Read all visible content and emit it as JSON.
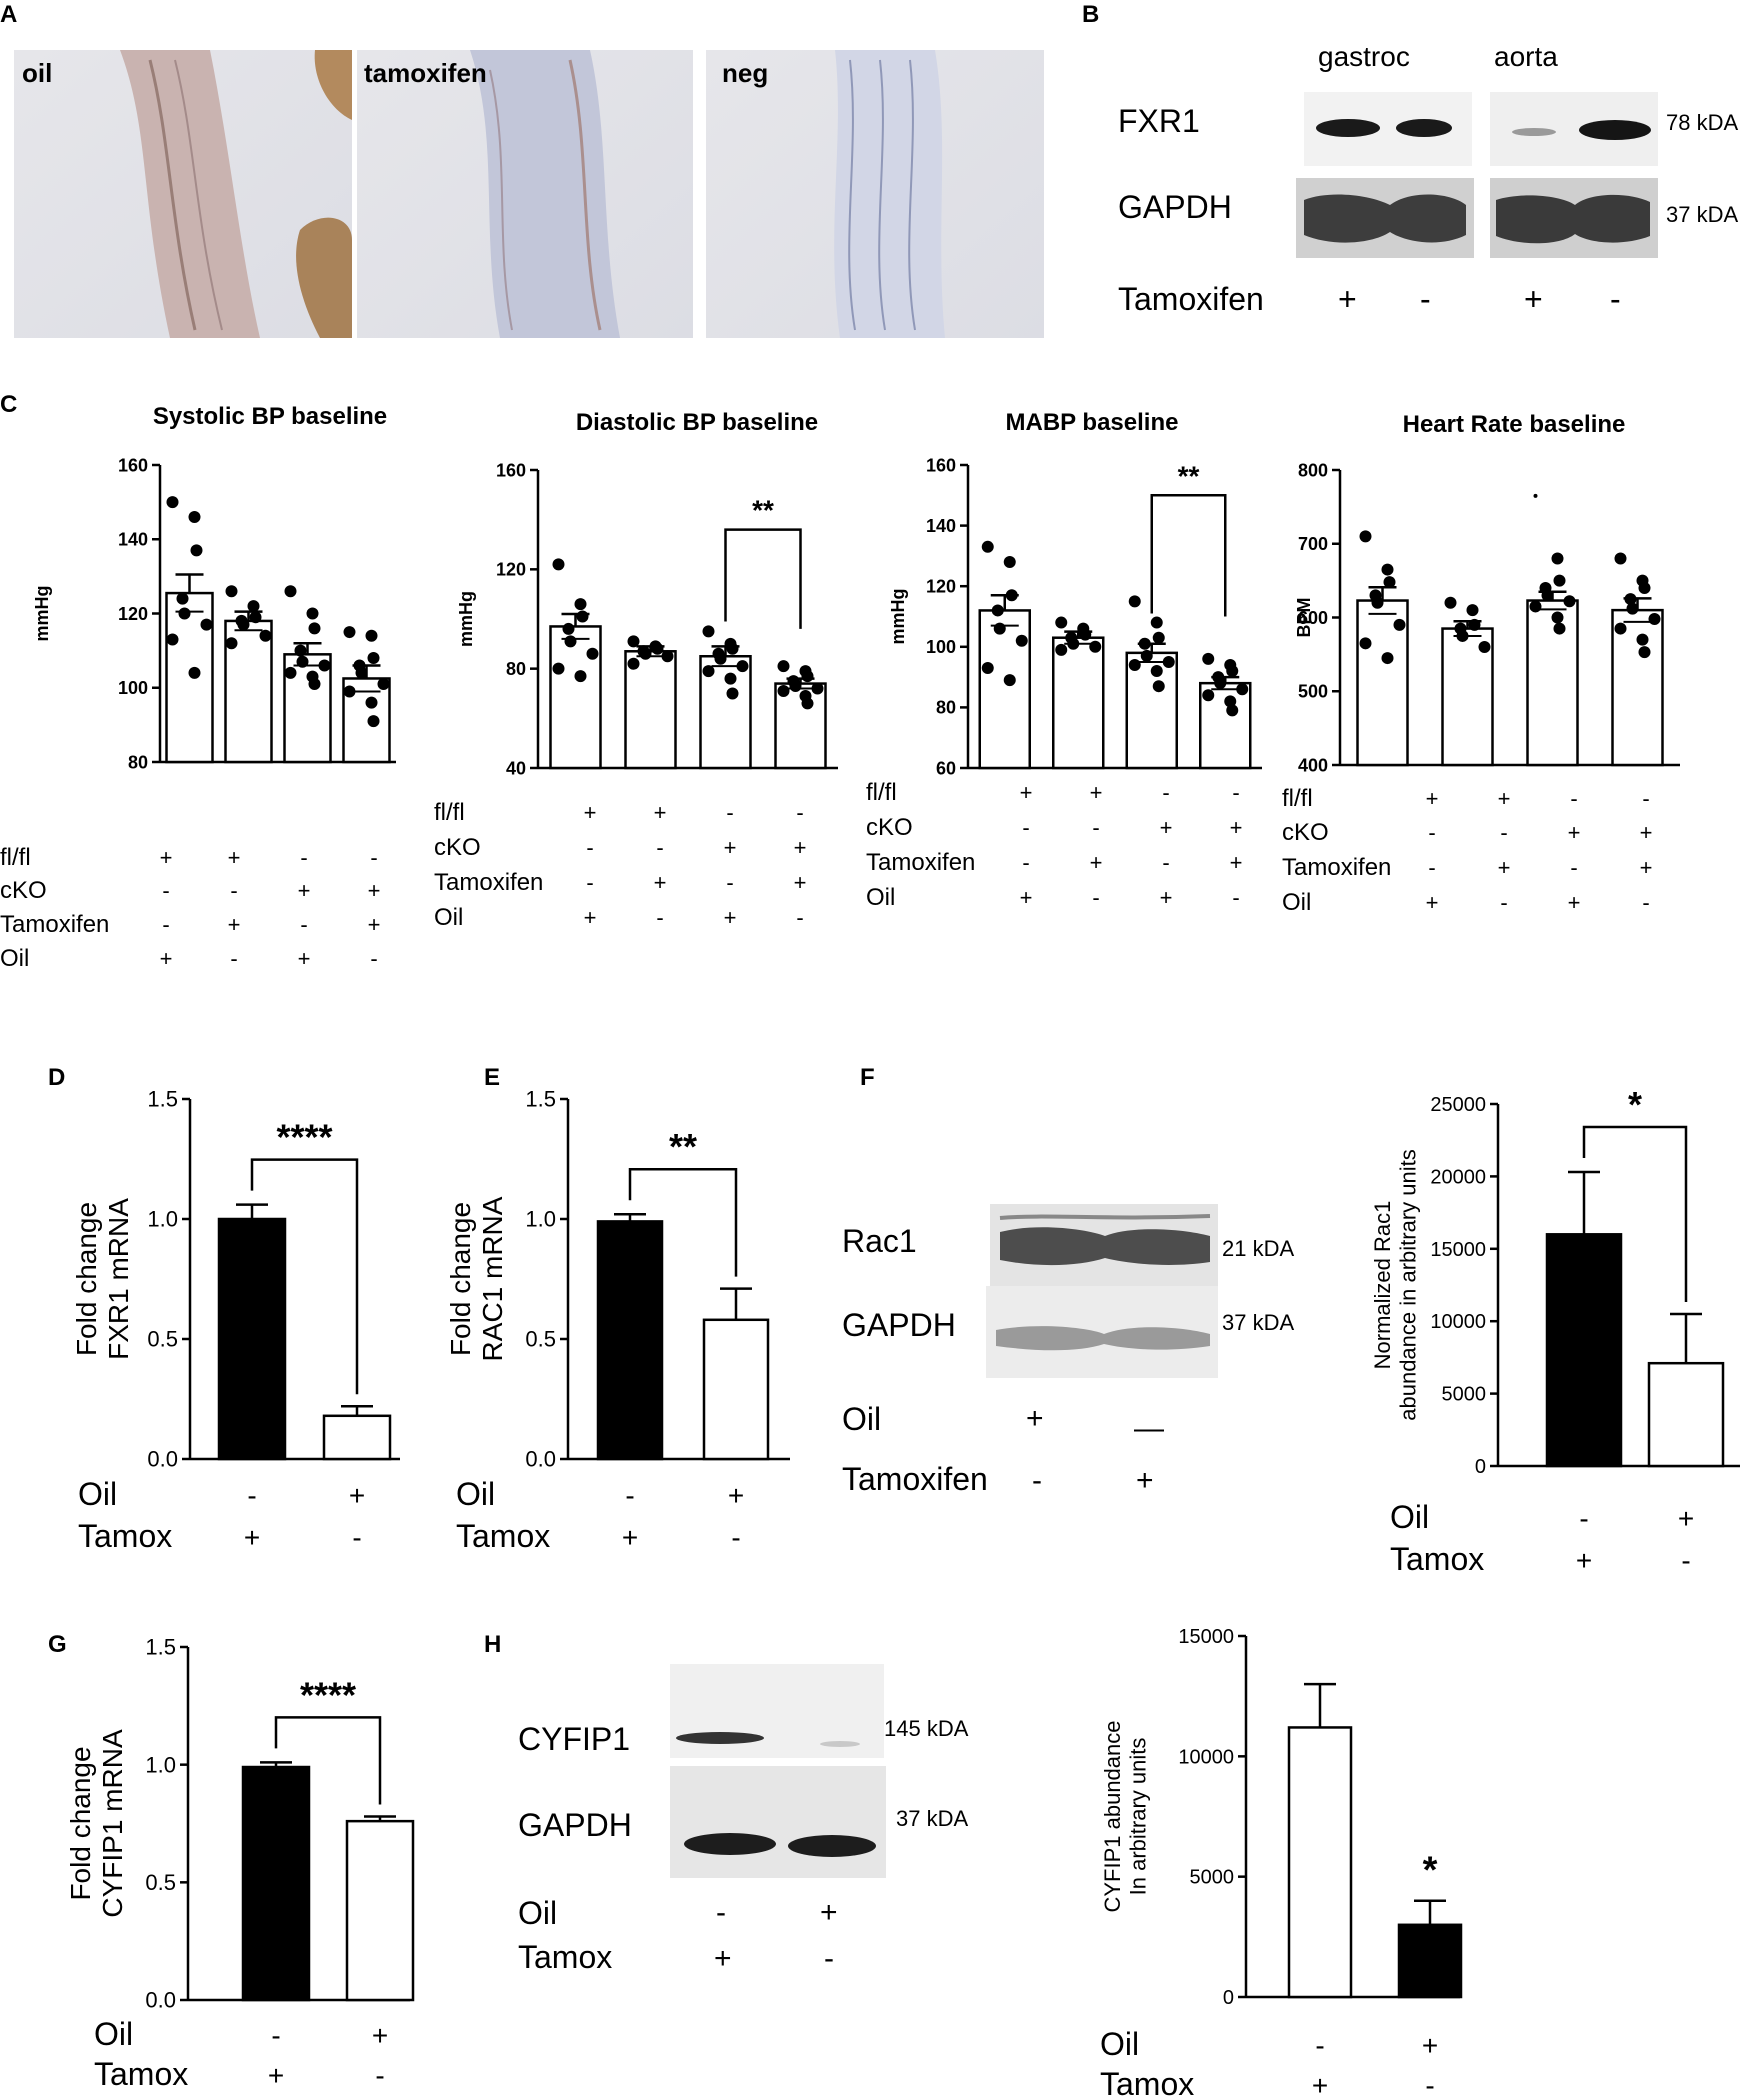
{
  "panel_letters": {
    "a": "A",
    "b": "B",
    "c": "C",
    "d": "D",
    "e": "E",
    "f": "F",
    "g": "G",
    "h": "H"
  },
  "panelA": {
    "labels": [
      "oil",
      "tamoxifen",
      "neg"
    ]
  },
  "panelB": {
    "tissues": [
      "gastroc",
      "aorta"
    ],
    "proteins": [
      "FXR1",
      "GAPDH"
    ],
    "kda": [
      "78 kDA",
      "37 kDA"
    ],
    "row_label": "Tamoxifen",
    "signs": [
      "+",
      "-",
      "+",
      "-"
    ]
  },
  "panelC": {
    "rows": [
      {
        "label": "fl/fl",
        "signs": [
          "+",
          "+",
          "-",
          "-"
        ]
      },
      {
        "label": "cKO",
        "signs": [
          "-",
          "-",
          "+",
          "+"
        ]
      },
      {
        "label": "Tamoxifen",
        "signs": [
          "-",
          "+",
          "-",
          "+"
        ]
      },
      {
        "label": "Oil",
        "signs": [
          "+",
          "-",
          "+",
          "-"
        ]
      }
    ]
  },
  "blotF": {
    "proteins": [
      "Rac1",
      "GAPDH"
    ],
    "kda": [
      "21 kDA",
      "37 kDA"
    ],
    "rows": [
      {
        "label": "Oil",
        "signs": [
          "+",
          "—"
        ]
      },
      {
        "label": "Tamoxifen",
        "signs": [
          "-",
          "+"
        ]
      }
    ]
  },
  "blotH": {
    "proteins": [
      "CYFIP1",
      "GAPDH"
    ],
    "kda": [
      "145 kDA",
      "37 kDA"
    ],
    "rows": [
      {
        "label": "Oil",
        "signs": [
          "-",
          "+"
        ]
      },
      {
        "label": "Tamox",
        "signs": [
          "+",
          "-"
        ]
      }
    ]
  },
  "colors": {
    "filled": "#000000",
    "open": "#ffffff",
    "stroke": "#000000"
  },
  "chart_data": [
    {
      "id": "C1",
      "type": "bar",
      "title": "Systolic BP baseline",
      "ylabel": "mmHg",
      "ylim": [
        80,
        160
      ],
      "ticks": [
        80,
        100,
        120,
        140,
        160
      ],
      "values": [
        125.5,
        118,
        109,
        102.5
      ],
      "errors": [
        5,
        2.5,
        3,
        3.5
      ],
      "points": [
        [
          150,
          146,
          137,
          124,
          120,
          117,
          113,
          104
        ],
        [
          126,
          122,
          119,
          118,
          117,
          114,
          112
        ],
        [
          126,
          120,
          116,
          110,
          107,
          106,
          104,
          103,
          101
        ],
        [
          115,
          114,
          108,
          106,
          104,
          101,
          99,
          96,
          91
        ]
      ],
      "significance": []
    },
    {
      "id": "C2",
      "type": "bar",
      "title": "Diastolic BP baseline",
      "ylabel": "mmHg",
      "ylim": [
        40,
        160
      ],
      "ticks": [
        40,
        80,
        120,
        160
      ],
      "values": [
        97,
        87,
        85,
        74
      ],
      "errors": [
        5,
        2,
        4,
        2
      ],
      "points": [
        [
          122,
          106,
          101,
          96,
          91,
          86,
          80,
          77
        ],
        [
          91,
          89,
          88,
          87,
          86,
          85,
          82
        ],
        [
          95,
          90,
          88,
          86,
          84,
          81,
          79,
          76,
          70
        ],
        [
          81,
          79,
          77,
          75,
          73,
          72,
          71,
          69,
          66
        ]
      ],
      "significance": [
        {
          "from": 2,
          "to": 3,
          "label": "**",
          "y": 136
        }
      ]
    },
    {
      "id": "C3",
      "type": "bar",
      "title": "MABP baseline",
      "ylabel": "mmHg",
      "ylim": [
        60,
        160
      ],
      "ticks": [
        60,
        80,
        100,
        120,
        140,
        160
      ],
      "values": [
        112,
        103,
        98,
        88
      ],
      "errors": [
        5,
        2,
        3,
        2
      ],
      "points": [
        [
          133,
          128,
          117,
          112,
          106,
          102,
          93,
          89
        ],
        [
          108,
          106,
          104,
          103,
          101,
          100,
          99
        ],
        [
          115,
          108,
          103,
          101,
          97,
          95,
          94,
          92,
          87
        ],
        [
          96,
          94,
          92,
          90,
          88,
          86,
          84,
          82,
          79
        ]
      ],
      "significance": [
        {
          "from": 2,
          "to": 3,
          "label": "**",
          "y": 150
        }
      ]
    },
    {
      "id": "C4",
      "type": "bar",
      "title": "Heart Rate  baseline",
      "ylabel": "BPM",
      "ylim": [
        400,
        800
      ],
      "ticks": [
        400,
        500,
        600,
        700,
        800
      ],
      "values": [
        623,
        585,
        623,
        610
      ],
      "errors": [
        18,
        10,
        12,
        16
      ],
      "points": [
        [
          710,
          665,
          648,
          630,
          620,
          590,
          565,
          545
        ],
        [
          620,
          610,
          590,
          585,
          575,
          560
        ],
        [
          765,
          680,
          650,
          640,
          630,
          622,
          615,
          600,
          585
        ],
        [
          680,
          650,
          640,
          625,
          612,
          598,
          585,
          570,
          553
        ]
      ],
      "significance": []
    },
    {
      "id": "D",
      "type": "bar",
      "ylabel": "Fold change FXR1 mRNA",
      "ylim": [
        0,
        1.5
      ],
      "ticks": [
        "0.0",
        "0.5",
        "1.0",
        "1.5"
      ],
      "categories": [
        {
          "Oil": "-",
          "Tamox": "+"
        },
        {
          "Oil": "+",
          "Tamox": "-"
        }
      ],
      "values": [
        1.0,
        0.18
      ],
      "errors": [
        0.06,
        0.04
      ],
      "significance": [
        {
          "from": 0,
          "to": 1,
          "label": "****"
        }
      ]
    },
    {
      "id": "E",
      "type": "bar",
      "ylabel": "Fold change RAC1 mRNA",
      "ylim": [
        0,
        1.5
      ],
      "ticks": [
        "0.0",
        "0.5",
        "1.0",
        "1.5"
      ],
      "categories": [
        {
          "Oil": "-",
          "Tamox": "+"
        },
        {
          "Oil": "+",
          "Tamox": "-"
        }
      ],
      "values": [
        0.99,
        0.58
      ],
      "errors": [
        0.03,
        0.13
      ],
      "significance": [
        {
          "from": 0,
          "to": 1,
          "label": "**"
        }
      ]
    },
    {
      "id": "F",
      "type": "bar",
      "ylabel": "Normalized Rac1 abundance in arbitrary units",
      "ylim": [
        0,
        25000
      ],
      "ticks": [
        0,
        5000,
        10000,
        15000,
        20000,
        25000
      ],
      "categories": [
        {
          "Oil": "-",
          "Tamox": "+"
        },
        {
          "Oil": "+",
          "Tamox": "-"
        }
      ],
      "values": [
        16000,
        7100
      ],
      "errors": [
        4300,
        3400
      ],
      "significance": [
        {
          "from": 0,
          "to": 1,
          "label": "*"
        }
      ]
    },
    {
      "id": "G",
      "type": "bar",
      "ylabel": "Fold change CYFIP1 mRNA",
      "ylim": [
        0,
        1.5
      ],
      "ticks": [
        "0.0",
        "0.5",
        "1.0",
        "1.5"
      ],
      "categories": [
        {
          "Oil": "-",
          "Tamox": "+"
        },
        {
          "Oil": "+",
          "Tamox": "-"
        }
      ],
      "values": [
        0.99,
        0.76
      ],
      "errors": [
        0.02,
        0.02
      ],
      "significance": [
        {
          "from": 0,
          "to": 1,
          "label": "****"
        }
      ]
    },
    {
      "id": "H",
      "type": "bar",
      "ylabel": "CYFIP1 abundance In arbitrary units",
      "ylim": [
        0,
        15000
      ],
      "ticks": [
        0,
        5000,
        10000,
        15000
      ],
      "categories": [
        {
          "Oil": "-",
          "Tamox": "+"
        },
        {
          "Oil": "+",
          "Tamox": "-"
        }
      ],
      "values": [
        11200,
        3000
      ],
      "errors": [
        1800,
        1000
      ],
      "significance": [
        {
          "label": "*",
          "over": 1
        }
      ]
    }
  ]
}
